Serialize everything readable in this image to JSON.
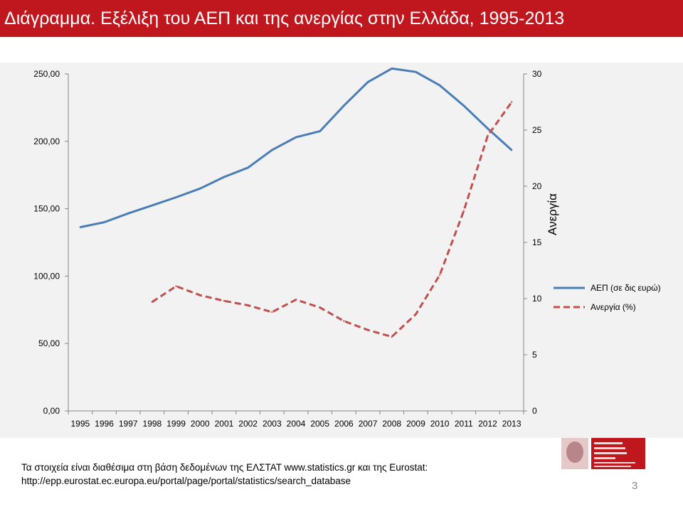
{
  "slide": {
    "title": "Διάγραμμα. Εξέλιξη του ΑΕΠ και της ανεργίας στην Ελλάδα, 1995-2013",
    "footer_line1": "Τα στοιχεία είναι διαθέσιμα στη βάση δεδομένων της  ΕΛΣΤΑΤ www.statistics.gr και της Eurostat:",
    "footer_line2": "http://epp.eurostat.ec.europa.eu/portal/page/portal/statistics/search_database",
    "slide_number": "3",
    "colors": {
      "title_bar": "#c0171f",
      "panel": "#f2f2f2"
    }
  },
  "chart_data": {
    "type": "line",
    "title": "",
    "xlabel": "",
    "ylabel_left": "",
    "ylabel_right": "Ανεργία",
    "categories": [
      "1995",
      "1996",
      "1997",
      "1998",
      "1999",
      "2000",
      "2001",
      "2002",
      "2003",
      "2004",
      "2005",
      "2006",
      "2007",
      "2008",
      "2009",
      "2010",
      "2011",
      "2012",
      "2013"
    ],
    "y_left": {
      "min": 0,
      "max": 250,
      "ticks": [
        "0,00",
        "50,00",
        "100,00",
        "150,00",
        "200,00",
        "250,00"
      ]
    },
    "y_right": {
      "min": 0,
      "max": 30,
      "ticks": [
        "0",
        "5",
        "10",
        "15",
        "20",
        "25",
        "30"
      ]
    },
    "grid": false,
    "legend_position": "right",
    "series": [
      {
        "name": "ΑΕΠ (σε δις  ευρώ)",
        "axis": "left",
        "style": "solid",
        "color": "#4a7db5",
        "values": [
          136.3,
          140.0,
          146.5,
          152.5,
          158.5,
          165.0,
          173.5,
          180.5,
          193.5,
          203.0,
          207.5,
          226.5,
          244.0,
          254.0,
          251.5,
          241.5,
          226.5,
          209.5,
          193.5
        ]
      },
      {
        "name": "Ανεργία (%)",
        "axis": "right",
        "style": "dashed",
        "color": "#c0504d",
        "values": [
          null,
          null,
          null,
          9.7,
          11.1,
          10.3,
          9.8,
          9.4,
          8.8,
          9.9,
          9.2,
          8.0,
          7.2,
          6.6,
          8.6,
          12.1,
          17.8,
          24.5,
          27.5
        ]
      }
    ]
  }
}
